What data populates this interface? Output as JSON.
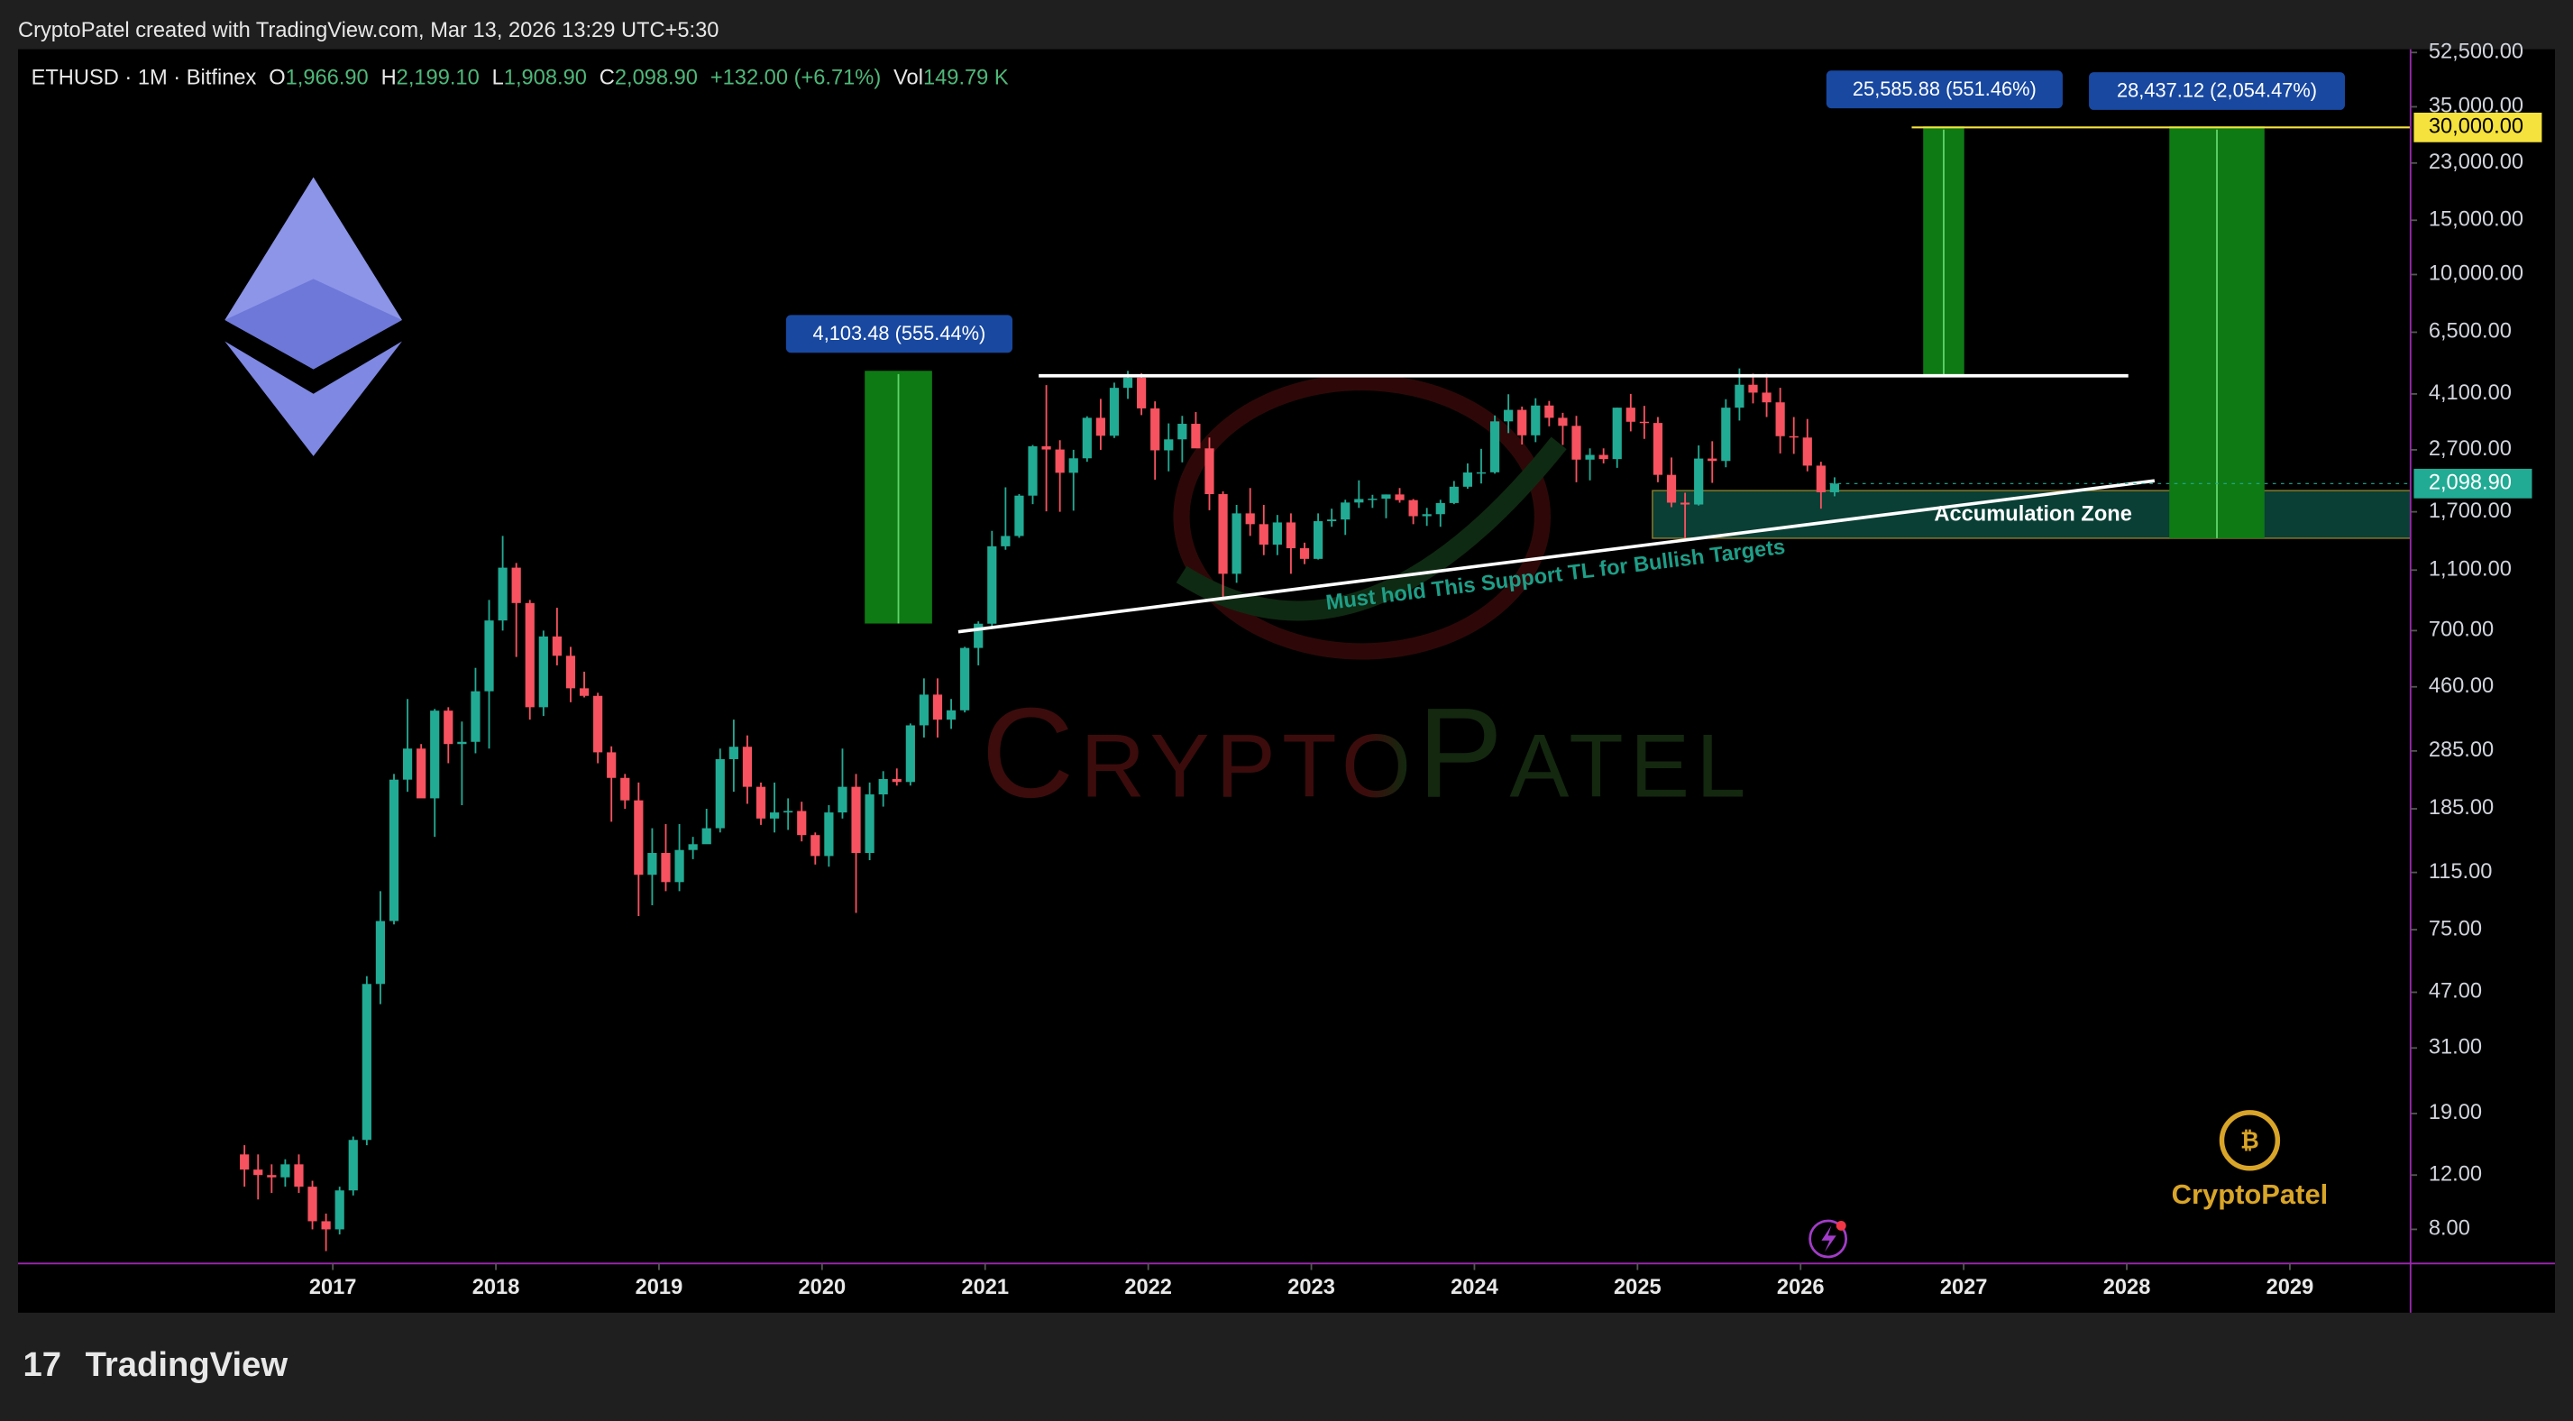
{
  "header": {
    "title": "CryptoPatel created with TradingView.com, Mar 13, 2026 13:29 UTC+5:30"
  },
  "footer": {
    "brand": "TradingView"
  },
  "chart_data": {
    "type": "candlestick",
    "legend": {
      "symbol": "ETHUSD · 1M · Bitfinex",
      "o_key": "O",
      "o": "1,966.90",
      "h_key": "H",
      "h": "2,199.10",
      "l_key": "L",
      "l": "1,908.90",
      "c_key": "C",
      "c": "2,098.90",
      "change": "+132.00 (+6.71%)",
      "vol_key": "Vol",
      "vol": "149.79 K"
    },
    "x": [
      "2016-06",
      "2016-07",
      "2016-08",
      "2016-09",
      "2016-10",
      "2016-11",
      "2016-12",
      "2017-01",
      "2017-02",
      "2017-03",
      "2017-04",
      "2017-05",
      "2017-06",
      "2017-07",
      "2017-08",
      "2017-09",
      "2017-10",
      "2017-11",
      "2017-12",
      "2018-01",
      "2018-02",
      "2018-03",
      "2018-04",
      "2018-05",
      "2018-06",
      "2018-07",
      "2018-08",
      "2018-09",
      "2018-10",
      "2018-11",
      "2018-12",
      "2019-01",
      "2019-02",
      "2019-03",
      "2019-04",
      "2019-05",
      "2019-06",
      "2019-07",
      "2019-08",
      "2019-09",
      "2019-10",
      "2019-11",
      "2019-12",
      "2020-01",
      "2020-02",
      "2020-03",
      "2020-04",
      "2020-05",
      "2020-06",
      "2020-07",
      "2020-08",
      "2020-09",
      "2020-10",
      "2020-11",
      "2020-12",
      "2021-01",
      "2021-02",
      "2021-03",
      "2021-04",
      "2021-05",
      "2021-06",
      "2021-07",
      "2021-08",
      "2021-09",
      "2021-10",
      "2021-11",
      "2021-12",
      "2022-01",
      "2022-02",
      "2022-03",
      "2022-04",
      "2022-05",
      "2022-06",
      "2022-07",
      "2022-08",
      "2022-09",
      "2022-10",
      "2022-11",
      "2022-12",
      "2023-01",
      "2023-02",
      "2023-03",
      "2023-04",
      "2023-05",
      "2023-06",
      "2023-07",
      "2023-08",
      "2023-09",
      "2023-10",
      "2023-11",
      "2023-12",
      "2024-01",
      "2024-02",
      "2024-03",
      "2024-04",
      "2024-05",
      "2024-06",
      "2024-07",
      "2024-08",
      "2024-09",
      "2024-10",
      "2024-11",
      "2024-12",
      "2025-01",
      "2025-02",
      "2025-03",
      "2025-04",
      "2025-05",
      "2025-06",
      "2025-07",
      "2025-08",
      "2025-09",
      "2025-10",
      "2025-11",
      "2025-12",
      "2026-01",
      "2026-02",
      "2026-03"
    ],
    "open": [
      14,
      12.5,
      12,
      11.8,
      13,
      11,
      8.5,
      8,
      10.7,
      15.6,
      50,
      80,
      230,
      290,
      200,
      385,
      300,
      305,
      445,
      755,
      1120,
      860,
      395,
      670,
      580,
      455,
      430,
      282,
      233,
      197,
      113,
      133,
      107,
      136,
      142,
      160,
      268,
      294,
      218,
      172,
      180,
      182,
      152,
      130,
      180,
      218,
      133,
      206,
      231,
      226,
      345,
      434,
      360,
      386,
      615,
      737,
      1314,
      1419,
      1918,
      2773,
      2707,
      2275,
      2535,
      3430,
      3000,
      4290,
      4630,
      3680,
      2690,
      2920,
      3280,
      2730,
      1940,
      1070,
      1680,
      1550,
      1330,
      1570,
      1295,
      1196,
      1585,
      1605,
      1822,
      1870,
      1875,
      1935,
      1855,
      1645,
      1670,
      1815,
      2050,
      2280,
      2283,
      3340,
      3640,
      3010,
      3760,
      3430,
      3230,
      2510,
      2600,
      2520,
      3700,
      3330,
      3300,
      2240,
      1820,
      1795,
      2530,
      2485,
      3700,
      4390,
      4140,
      3850,
      2990,
      2960,
      2400,
      1966.9
    ],
    "high": [
      15,
      14,
      13,
      13.5,
      14,
      11.5,
      9,
      11,
      16,
      53,
      100,
      240,
      420,
      300,
      390,
      395,
      355,
      530,
      880,
      1420,
      1160,
      880,
      700,
      830,
      620,
      515,
      440,
      295,
      240,
      225,
      160,
      165,
      165,
      150,
      185,
      290,
      360,
      320,
      225,
      225,
      200,
      195,
      155,
      190,
      290,
      240,
      225,
      245,
      250,
      350,
      490,
      490,
      420,
      620,
      750,
      1475,
      2040,
      1940,
      2800,
      4380,
      2900,
      2700,
      3470,
      3950,
      4460,
      4870,
      4780,
      3880,
      3290,
      3480,
      3580,
      2960,
      1980,
      1790,
      2030,
      1790,
      1660,
      1680,
      1350,
      1680,
      1740,
      1860,
      2150,
      1930,
      1935,
      2030,
      1870,
      1750,
      1860,
      2140,
      2440,
      2720,
      3490,
      4090,
      3730,
      3970,
      3890,
      3560,
      3480,
      2730,
      2730,
      3700,
      4100,
      3750,
      3450,
      2550,
      1960,
      2790,
      2880,
      3940,
      4960,
      4770,
      4760,
      4290,
      3450,
      3400,
      2470,
      2199.1
    ],
    "low": [
      11,
      10,
      10.5,
      11,
      10.5,
      8,
      6.8,
      7.7,
      10.3,
      15,
      43,
      78,
      210,
      240,
      150,
      260,
      190,
      280,
      290,
      700,
      575,
      360,
      370,
      540,
      410,
      425,
      260,
      168,
      185,
      83,
      90,
      100,
      100,
      127,
      150,
      155,
      210,
      192,
      164,
      155,
      158,
      145,
      122,
      120,
      172,
      85,
      126,
      188,
      220,
      220,
      315,
      315,
      336,
      380,
      540,
      714,
      1280,
      1400,
      1800,
      1705,
      1700,
      1715,
      2470,
      2700,
      2950,
      3950,
      3500,
      2160,
      2300,
      2460,
      2740,
      1720,
      880,
      1000,
      1420,
      1230,
      1230,
      1070,
      1150,
      1190,
      1520,
      1430,
      1750,
      1750,
      1620,
      1820,
      1550,
      1530,
      1520,
      1800,
      2020,
      2100,
      2260,
      3060,
      2810,
      2860,
      3220,
      2800,
      2120,
      2150,
      2440,
      2360,
      3100,
      2930,
      2120,
      1760,
      1380,
      1780,
      2110,
      2370,
      3360,
      3820,
      3450,
      2630,
      2620,
      2300,
      1740,
      1908.9
    ],
    "close": [
      12.5,
      12,
      11.8,
      13,
      11,
      8.5,
      8,
      10.7,
      15.6,
      50,
      80,
      230,
      290,
      200,
      385,
      300,
      305,
      445,
      755,
      1120,
      860,
      395,
      670,
      580,
      455,
      430,
      282,
      233,
      197,
      113,
      133,
      107,
      136,
      142,
      160,
      268,
      294,
      218,
      172,
      180,
      182,
      152,
      130,
      180,
      218,
      133,
      206,
      231,
      226,
      345,
      434,
      360,
      386,
      615,
      737,
      1314,
      1419,
      1918,
      2773,
      2707,
      2275,
      2535,
      3430,
      3000,
      4290,
      4630,
      3680,
      2690,
      2920,
      3280,
      2730,
      1940,
      1070,
      1680,
      1550,
      1330,
      1570,
      1295,
      1196,
      1585,
      1605,
      1822,
      1870,
      1875,
      1935,
      1855,
      1645,
      1670,
      1815,
      2050,
      2280,
      2283,
      3340,
      3640,
      3010,
      3760,
      3430,
      3230,
      2510,
      2600,
      2520,
      3700,
      3330,
      3300,
      2240,
      1820,
      1795,
      2530,
      2485,
      3700,
      4390,
      4140,
      3850,
      2990,
      2960,
      2400,
      1966.9,
      2098.9
    ],
    "up_color": "#22ab94",
    "down_color": "#f7525f",
    "xlim": [
      2015.07,
      2029.74
    ],
    "xticks": [
      2017,
      2018,
      2019,
      2020,
      2021,
      2022,
      2023,
      2024,
      2025,
      2026,
      2027,
      2028,
      2029
    ],
    "ylim": [
      6.2,
      53800
    ],
    "yticks": [
      {
        "value": 8,
        "label": "8.00"
      },
      {
        "value": 12,
        "label": "12.00"
      },
      {
        "value": 19,
        "label": "19.00"
      },
      {
        "value": 31,
        "label": "31.00"
      },
      {
        "value": 47,
        "label": "47.00"
      },
      {
        "value": 75,
        "label": "75.00"
      },
      {
        "value": 115,
        "label": "115.00"
      },
      {
        "value": 185,
        "label": "185.00"
      },
      {
        "value": 285,
        "label": "285.00"
      },
      {
        "value": 460,
        "label": "460.00"
      },
      {
        "value": 700,
        "label": "700.00"
      },
      {
        "value": 1100,
        "label": "1,100.00"
      },
      {
        "value": 1700,
        "label": "1,700.00"
      },
      {
        "value": 2700,
        "label": "2,700.00"
      },
      {
        "value": 4100,
        "label": "4,100.00"
      },
      {
        "value": 6500,
        "label": "6,500.00"
      },
      {
        "value": 10000,
        "label": "10,000.00"
      },
      {
        "value": 15000,
        "label": "15,000.00"
      },
      {
        "value": 23000,
        "label": "23,000.00"
      },
      {
        "value": 35000,
        "label": "35,000.00"
      },
      {
        "value": 52500,
        "label": "52,500.00"
      }
    ],
    "log_scale": true,
    "grid": false,
    "target": {
      "value": 30000,
      "label": "30,000.00"
    },
    "last_price": {
      "value": 2098.9,
      "label": "2,098.90"
    },
    "measures": [
      "4,103.48 (555.44%)",
      "25,585.88 (551.46%)",
      "28,437.12 (2,054.47%)"
    ],
    "zone_label": "Accumulation Zone",
    "trendline_label": "Must hold This Support TL for Bullish Targets",
    "watermark": "CryptoPatel",
    "logo_text": "CryptoPatel"
  }
}
